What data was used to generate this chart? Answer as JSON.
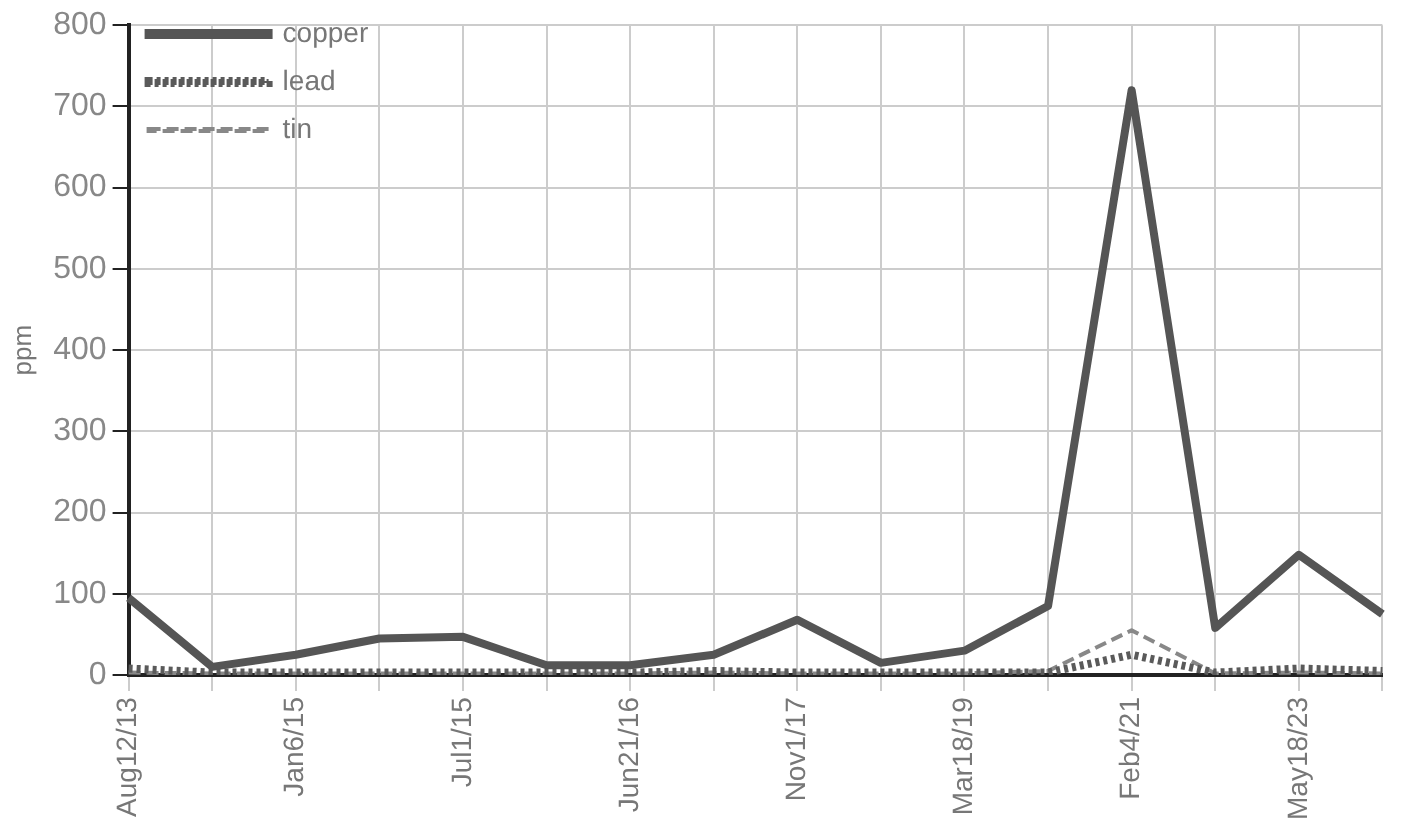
{
  "chart_data": {
    "type": "line",
    "ylabel": "ppm",
    "categories": [
      "Aug12/13",
      null,
      "Jan6/15",
      null,
      "Jul1/15",
      null,
      "Jun21/16",
      null,
      "Nov1/17",
      null,
      "Mar18/19",
      null,
      "Feb4/21",
      null,
      "May18/23",
      null
    ],
    "series": [
      {
        "name": "copper",
        "color": "#555555",
        "line_style": "solid",
        "values": [
          95,
          10,
          25,
          45,
          47,
          12,
          12,
          25,
          68,
          15,
          30,
          85,
          720,
          58,
          148,
          75
        ]
      },
      {
        "name": "lead",
        "color": "#5a5a5a",
        "line_style": "dotted",
        "values": [
          8,
          3,
          3,
          3,
          3,
          3,
          3,
          5,
          3,
          3,
          3,
          3,
          25,
          3,
          8,
          5
        ]
      },
      {
        "name": "tin",
        "color": "#888888",
        "line_style": "dashed",
        "values": [
          3,
          2,
          2,
          2,
          2,
          2,
          2,
          3,
          2,
          2,
          2,
          5,
          55,
          2,
          3,
          2
        ]
      }
    ],
    "ylim": [
      0,
      800
    ],
    "yticks": [
      0,
      100,
      200,
      300,
      400,
      500,
      600,
      700,
      800
    ],
    "grid": true,
    "legend": "top left",
    "marker": "none"
  }
}
